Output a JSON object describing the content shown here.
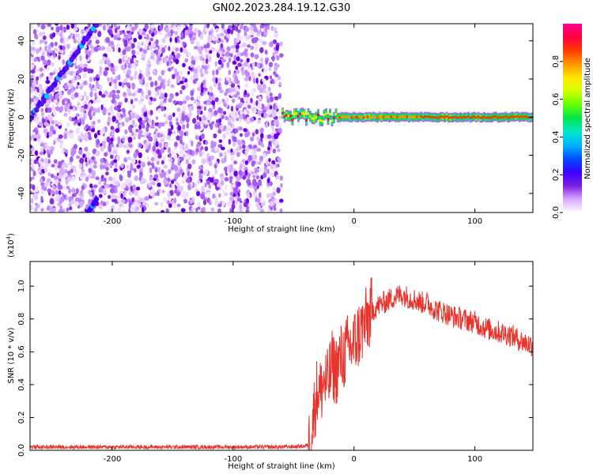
{
  "title": "GN02.2023.284.19.12.G30",
  "colors": {
    "signal": "#e8322a",
    "background_dots": "#8a2be2",
    "axis": "#000000"
  },
  "chart_data": [
    {
      "type": "heatmap",
      "xlabel": "Height of straight line (km)",
      "ylabel": "Frequency (Hz)",
      "xlim": [
        -268,
        148
      ],
      "ylim": [
        -50,
        49
      ],
      "xticks": [
        -200,
        -100,
        0,
        100
      ],
      "yticks": [
        -40,
        -20,
        0,
        20,
        40
      ],
      "colorbar": {
        "label": "Normalized spectral amplitude",
        "range": [
          0,
          1
        ],
        "ticks": [
          "0.0",
          "0.2",
          "0.4",
          "0.6",
          "0.8"
        ],
        "colormap": [
          "#ffffff",
          "#d9a8ff",
          "#7b1fe0",
          "#3a00ff",
          "#0050ff",
          "#00b4ff",
          "#00e6c8",
          "#00e64d",
          "#64ff00",
          "#d2ff00",
          "#ffe600",
          "#ff9600",
          "#ff3c00",
          "#ff0040",
          "#ff0090"
        ]
      },
      "features": {
        "noise_region_x": [
          -268,
          -60
        ],
        "diagonal_streak": {
          "x": [
            -268,
            -213
          ],
          "y": [
            -1,
            49
          ]
        },
        "lower_streak": {
          "x": [
            -220,
            -213
          ],
          "y": [
            -50,
            -43
          ]
        },
        "ridge_frequency_hz": 0
      }
    },
    {
      "type": "line",
      "xlabel": "Height of straight line (km)",
      "ylabel": "SNR (10 * v/v)",
      "y_multiplier": "(x10",
      "y_multiplier_exp": "4",
      "y_multiplier_close": ")",
      "xlim": [
        -268,
        148
      ],
      "ylim": [
        0,
        1.15
      ],
      "xticks": [
        -200,
        -100,
        0,
        100
      ],
      "yticks": [
        "0.0",
        "0.2",
        "0.4",
        "0.6",
        "0.8",
        "1.0"
      ],
      "series": [
        {
          "color": "#e8322a",
          "x": [
            -268,
            -250,
            -200,
            -150,
            -100,
            -60,
            -40,
            -36,
            -34,
            -32,
            -30,
            -28,
            -25,
            -22,
            -18,
            -15,
            -12,
            -8,
            -5,
            0,
            5,
            10,
            15,
            20,
            25,
            30,
            35,
            40,
            45,
            50,
            55,
            60,
            65,
            70,
            75,
            80,
            90,
            100,
            110,
            120,
            130,
            140,
            148
          ],
          "y": [
            0.02,
            0.02,
            0.02,
            0.02,
            0.02,
            0.02,
            0.025,
            0.05,
            0.18,
            0.3,
            0.38,
            0.35,
            0.42,
            0.4,
            0.52,
            0.48,
            0.55,
            0.58,
            0.62,
            0.65,
            0.72,
            0.78,
            0.85,
            0.88,
            0.9,
            0.92,
            0.94,
            0.95,
            0.93,
            0.92,
            0.9,
            0.9,
            0.87,
            0.85,
            0.84,
            0.82,
            0.8,
            0.78,
            0.74,
            0.72,
            0.7,
            0.66,
            0.64
          ]
        }
      ]
    }
  ]
}
